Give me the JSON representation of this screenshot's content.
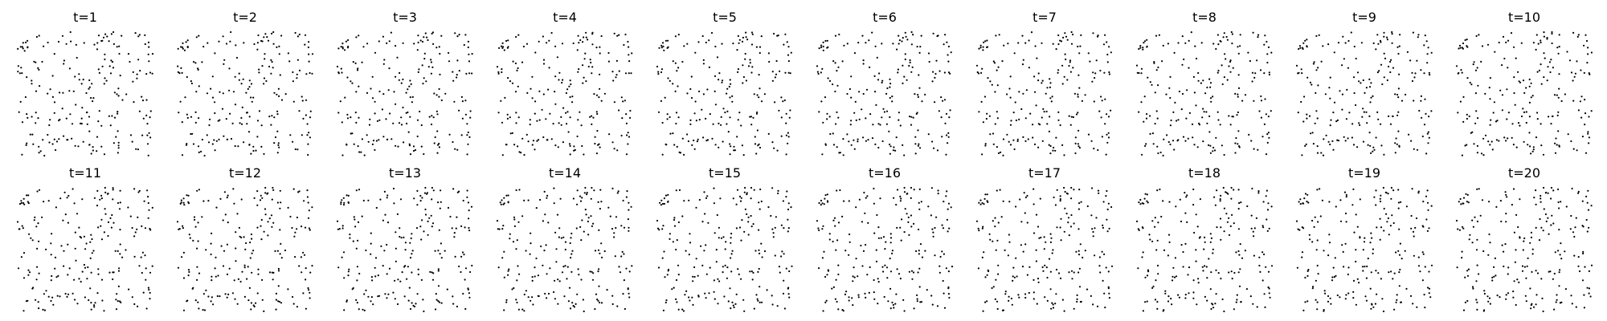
{
  "figure": {
    "background": "#ffffff",
    "point_color": "#000000"
  },
  "chart_data": {
    "type": "scatter",
    "layout": "grid",
    "rows": 2,
    "cols": 10,
    "axes_visible": false,
    "grid": false,
    "legend": "none",
    "panel_titles": [
      "t=1",
      "t=2",
      "t=3",
      "t=4",
      "t=5",
      "t=6",
      "t=7",
      "t=8",
      "t=9",
      "t=10",
      "t=11",
      "t=12",
      "t=13",
      "t=14",
      "t=15",
      "t=16",
      "t=17",
      "t=18",
      "t=19",
      "t=20"
    ],
    "points_per_panel": 220,
    "xlim": [
      0,
      1
    ],
    "ylim": [
      0,
      1
    ],
    "note": "Each panel shows a scatter of the same set of points evolving over time steps t=1..t=20; individual point coordinates are not labeled and are approximated."
  }
}
